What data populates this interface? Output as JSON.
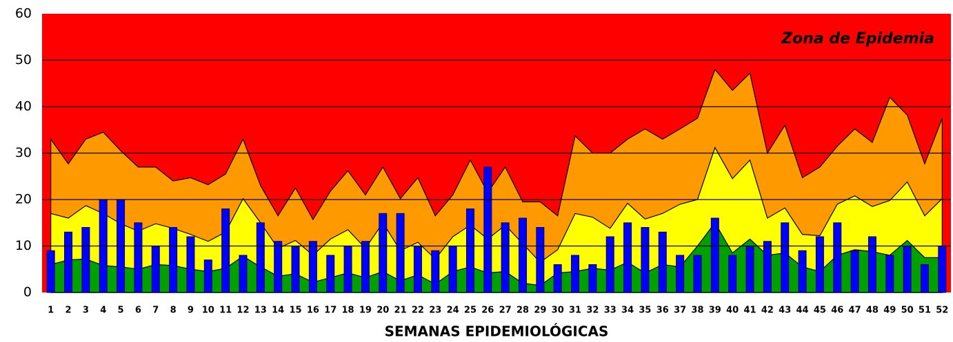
{
  "chart_data": {
    "type": "area",
    "x_label": "SEMANAS EPIDEMIOLÓGICAS",
    "annotation": "Zona de Epidemia",
    "background_color": "#ff0000",
    "grid": true,
    "categories": [
      "1",
      "2",
      "3",
      "4",
      "5",
      "6",
      "7",
      "8",
      "9",
      "10",
      "11",
      "12",
      "13",
      "14",
      "15",
      "16",
      "17",
      "18",
      "19",
      "20",
      "21",
      "22",
      "23",
      "24",
      "25",
      "26",
      "27",
      "28",
      "29",
      "30",
      "31",
      "32",
      "33",
      "34",
      "35",
      "36",
      "37",
      "38",
      "39",
      "40",
      "41",
      "42",
      "43",
      "44",
      "45",
      "46",
      "47",
      "48",
      "49",
      "50",
      "51",
      "52"
    ],
    "ylim": [
      0,
      60
    ],
    "yticks": [
      0,
      10,
      20,
      30,
      40,
      50,
      60
    ],
    "series": [
      {
        "type": "area",
        "color": "#ff9900",
        "values": [
          33,
          27.7,
          33,
          34.5,
          30.5,
          27,
          27,
          24,
          24.7,
          23.2,
          25.5,
          33,
          23,
          16.5,
          22.5,
          15.7,
          21.8,
          26.2,
          21,
          27,
          20.2,
          24.7,
          16.5,
          21,
          28.5,
          21.5,
          27,
          19.5,
          19.5,
          16.5,
          33.7,
          30,
          30,
          33,
          35.2,
          33,
          35.2,
          37.5,
          48,
          43.5,
          47.2,
          30,
          36,
          24.7,
          27,
          31.5,
          35.2,
          32.3,
          42,
          38.2,
          27.7,
          37.5
        ]
      },
      {
        "type": "area",
        "color": "#ffff00",
        "values": [
          17,
          16,
          18.7,
          17,
          14.8,
          13.2,
          14.8,
          13.8,
          12.5,
          11,
          13,
          20.2,
          15,
          9.5,
          11.2,
          8,
          11.5,
          13.5,
          9.5,
          15,
          9,
          10.8,
          7.2,
          12,
          14.5,
          11.5,
          14.5,
          10.5,
          6.5,
          9.2,
          17,
          16.2,
          13.8,
          19.2,
          15.8,
          17,
          19,
          20,
          31.2,
          24.5,
          28.5,
          16,
          18.2,
          12.5,
          12.2,
          19,
          20.8,
          18.5,
          19.8,
          23.8,
          16.5,
          20.2
        ]
      },
      {
        "type": "area",
        "color": "#00a000",
        "values": [
          6,
          7,
          7.2,
          5.8,
          5.5,
          5,
          6,
          5.8,
          5,
          4.5,
          5.2,
          7.8,
          5.5,
          3.5,
          4,
          2.2,
          3.2,
          4.2,
          3.2,
          4.5,
          2.5,
          3.8,
          1.8,
          4.5,
          5.5,
          4.2,
          4.5,
          2,
          1.5,
          4.2,
          4.5,
          5.2,
          4.8,
          6.5,
          4.2,
          6,
          5.5,
          10,
          15,
          8.5,
          11.5,
          8,
          8.5,
          5.5,
          4.5,
          8,
          9.2,
          8.8,
          8,
          11.2,
          7.5,
          7.5
        ]
      },
      {
        "type": "bar",
        "color": "#0000ff",
        "values": [
          9,
          13,
          14,
          20,
          20,
          15,
          10,
          14,
          12,
          7,
          18,
          8,
          15,
          11,
          10,
          11,
          8,
          10,
          11,
          17,
          17,
          10,
          9,
          10,
          18,
          27,
          15,
          16,
          14,
          6,
          8,
          6,
          12,
          15,
          14,
          13,
          8,
          8,
          16,
          8,
          10,
          11,
          15,
          9,
          12,
          15,
          9,
          12,
          8,
          10,
          6,
          10
        ]
      }
    ]
  }
}
